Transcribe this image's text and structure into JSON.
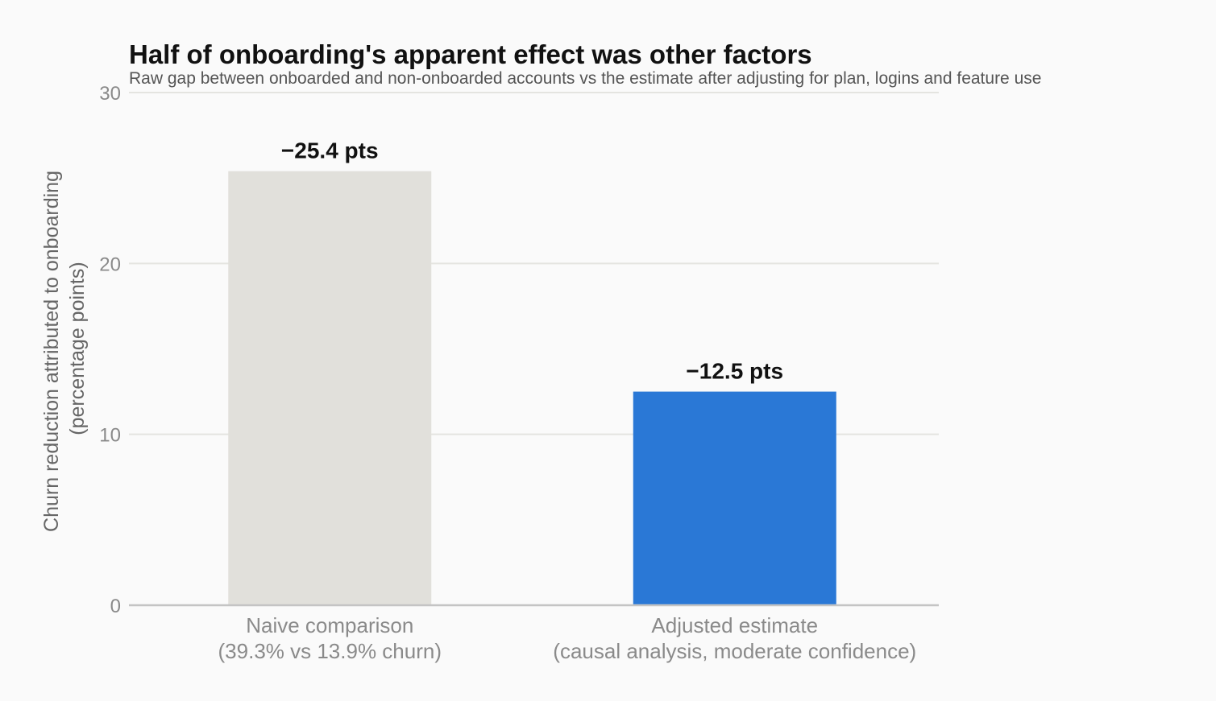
{
  "chart_data": {
    "type": "bar",
    "title": "Half of onboarding's apparent effect was other factors",
    "subtitle": "Raw gap between onboarded and non-onboarded accounts vs the estimate after adjusting for plan, logins and feature use",
    "ylabel": [
      "Churn reduction attributed to onboarding",
      "(percentage points)"
    ],
    "xlabel": "",
    "ylim": [
      0,
      30
    ],
    "yticks": [
      0,
      10,
      20,
      30
    ],
    "grid": true,
    "categories": [
      [
        "Naive comparison",
        "(39.3% vs 13.9% churn)"
      ],
      [
        "Adjusted estimate",
        "(causal analysis, moderate confidence)"
      ]
    ],
    "values": [
      25.4,
      12.5
    ],
    "data_labels": [
      "−25.4 pts",
      "−12.5 pts"
    ],
    "colors": [
      "#e1e0db",
      "#2a78d6"
    ]
  }
}
